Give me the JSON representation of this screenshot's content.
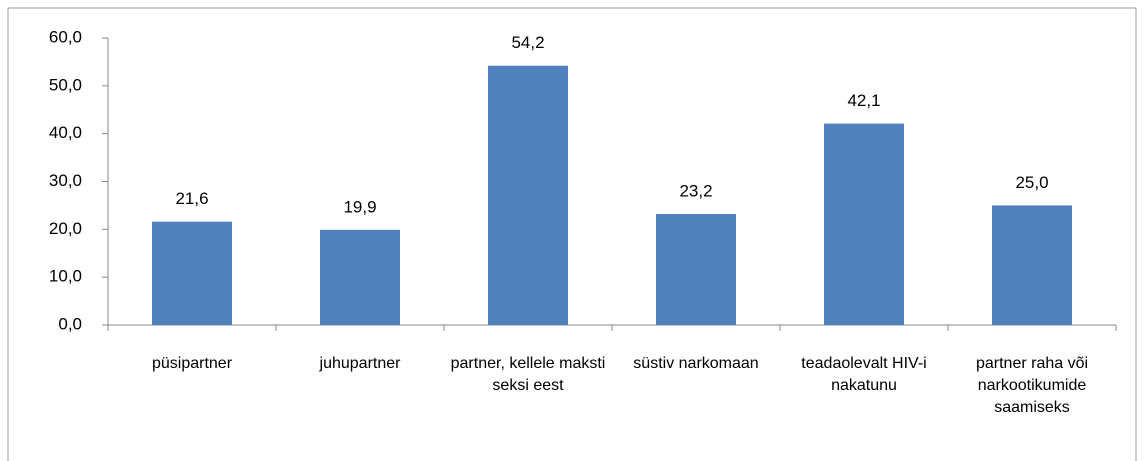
{
  "chart_data": {
    "type": "bar",
    "categories": [
      "püsipartner",
      "juhupartner",
      "partner, kellele maksti seksi eest",
      "süstiv narkomaan",
      "teadaolevalt HIV-i nakatunu",
      "partner raha või narkootikumide saamiseks"
    ],
    "values": [
      21.6,
      19.9,
      54.2,
      23.2,
      42.1,
      25.0
    ],
    "value_labels": [
      "21,6",
      "19,9",
      "54,2",
      "23,2",
      "42,1",
      "25,0"
    ],
    "color": "#4f81bd",
    "ylim": [
      0,
      60
    ],
    "yticks": [
      {
        "value": 0,
        "label": "0,0"
      },
      {
        "value": 10,
        "label": "10,0"
      },
      {
        "value": 20,
        "label": "20,0"
      },
      {
        "value": 30,
        "label": "30,0"
      },
      {
        "value": 40,
        "label": "40,0"
      },
      {
        "value": 50,
        "label": "50,0"
      },
      {
        "value": 60,
        "label": "60,0"
      }
    ],
    "grid": false
  }
}
